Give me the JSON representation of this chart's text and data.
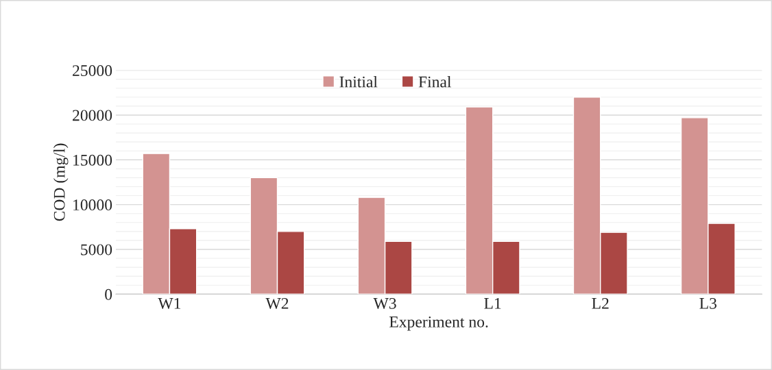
{
  "chart_data": {
    "type": "bar",
    "xlabel": "Experiment no.",
    "ylabel": "COD (mg/l)",
    "categories": [
      "W1",
      "W2",
      "W3",
      "L1",
      "L2",
      "L3"
    ],
    "series": [
      {
        "name": "Initial",
        "color": "#d39391",
        "values": [
          15700,
          13000,
          10800,
          20900,
          22000,
          19700
        ]
      },
      {
        "name": "Final",
        "color": "#ab4744",
        "values": [
          7300,
          7000,
          5900,
          5900,
          6900,
          7900
        ]
      }
    ],
    "ylim": [
      0,
      25000
    ],
    "yticks": [
      0,
      5000,
      10000,
      15000,
      20000,
      25000
    ],
    "grid": "y",
    "legend": "top"
  }
}
